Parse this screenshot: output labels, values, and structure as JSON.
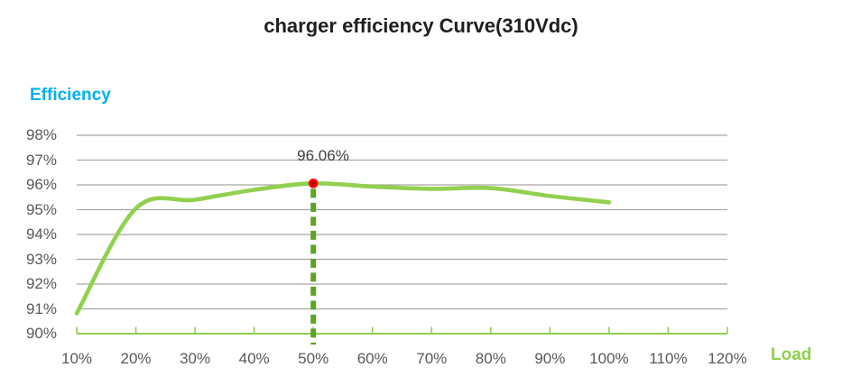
{
  "title": "charger efficiency Curve(310Vdc)",
  "y_axis_label": "Efficiency",
  "x_axis_label": "Load",
  "annotation": "96.06%",
  "colors": {
    "title_text": "#1f1f1f",
    "efficiency_label": "#00B0F0",
    "load_label": "#8ED04E",
    "curve": "#92D050",
    "axis_line": "#92D050",
    "dashed_line": "#5EA226",
    "marker_fill": "#C00000",
    "marker_stroke": "#FF0000",
    "gridline": "#A6A6A6",
    "tick_label": "#595959",
    "annotation_text": "#404040"
  },
  "chart_data": {
    "type": "line",
    "title": "charger efficiency Curve(310Vdc)",
    "xlabel": "Load",
    "ylabel": "Efficiency",
    "x_tick_labels": [
      "10%",
      "20%",
      "30%",
      "40%",
      "50%",
      "60%",
      "70%",
      "80%",
      "90%",
      "100%",
      "110%",
      "120%"
    ],
    "y_tick_labels": [
      "98%",
      "97%",
      "96%",
      "95%",
      "94%",
      "93%",
      "92%",
      "91%",
      "90%"
    ],
    "ylim": [
      90,
      98
    ],
    "grid": true,
    "legend": "none",
    "series": [
      {
        "name": "efficiency",
        "x_percent": [
          10,
          20,
          30,
          40,
          50,
          60,
          70,
          80,
          90,
          100
        ],
        "values": [
          90.82,
          95.05,
          95.4,
          95.8,
          96.06,
          95.93,
          95.84,
          95.87,
          95.55,
          95.3
        ]
      }
    ],
    "peak": {
      "x_percent": 50,
      "value": 96.06,
      "label": "96.06%"
    }
  }
}
